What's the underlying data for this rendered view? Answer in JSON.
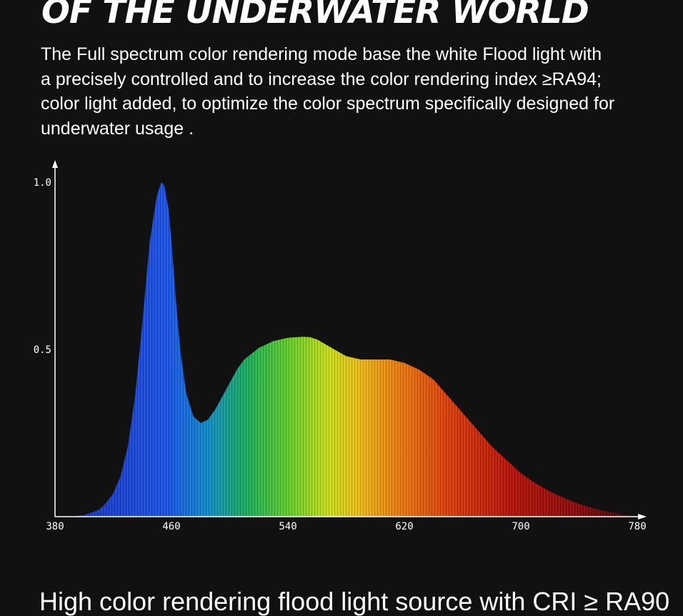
{
  "headline": "OF THE UNDERWATER WORLD",
  "paragraph": [
    "The Full spectrum color rendering mode base the white Flood light with",
    "a precisely controlled and to increase the color rendering index ≥RA94;",
    "color light added, to optimize the color spectrum specifically designed for",
    "underwater usage ."
  ],
  "footer_partial": "High color rendering flood light source with CRI ≥ RA90",
  "colors": {
    "background": "#111111",
    "text": "#ffffff",
    "axis": "#ffffff"
  },
  "chart_data": {
    "type": "area",
    "title": "",
    "xlabel": "",
    "ylabel": "",
    "xlim": [
      380,
      780
    ],
    "ylim": [
      0,
      1.0
    ],
    "x_ticks": [
      "380",
      "460",
      "540",
      "620",
      "700",
      "780"
    ],
    "y_ticks": [
      "1.0",
      "0.5"
    ],
    "grid": false,
    "fill": "spectral wavelength colors",
    "series": [
      {
        "x": [
          380,
          390,
          400,
          410,
          415,
          420,
          425,
          430,
          435,
          440,
          445,
          450,
          453,
          455,
          458,
          460,
          463,
          466,
          470,
          475,
          480,
          485,
          490,
          495,
          500,
          505,
          510,
          520,
          530,
          540,
          550,
          555,
          560,
          570,
          580,
          590,
          600,
          610,
          620,
          630,
          640,
          650,
          660,
          670,
          680,
          690,
          700,
          710,
          720,
          730,
          740,
          750,
          760,
          770,
          780
        ],
        "y": [
          0.0,
          0.0,
          0.005,
          0.02,
          0.04,
          0.07,
          0.12,
          0.21,
          0.36,
          0.58,
          0.82,
          0.96,
          1.0,
          0.99,
          0.92,
          0.82,
          0.65,
          0.5,
          0.37,
          0.3,
          0.28,
          0.29,
          0.32,
          0.36,
          0.4,
          0.44,
          0.47,
          0.505,
          0.525,
          0.535,
          0.538,
          0.537,
          0.53,
          0.505,
          0.48,
          0.47,
          0.47,
          0.47,
          0.46,
          0.44,
          0.41,
          0.36,
          0.31,
          0.26,
          0.21,
          0.17,
          0.13,
          0.1,
          0.075,
          0.055,
          0.038,
          0.025,
          0.015,
          0.007,
          0.002
        ]
      }
    ]
  }
}
